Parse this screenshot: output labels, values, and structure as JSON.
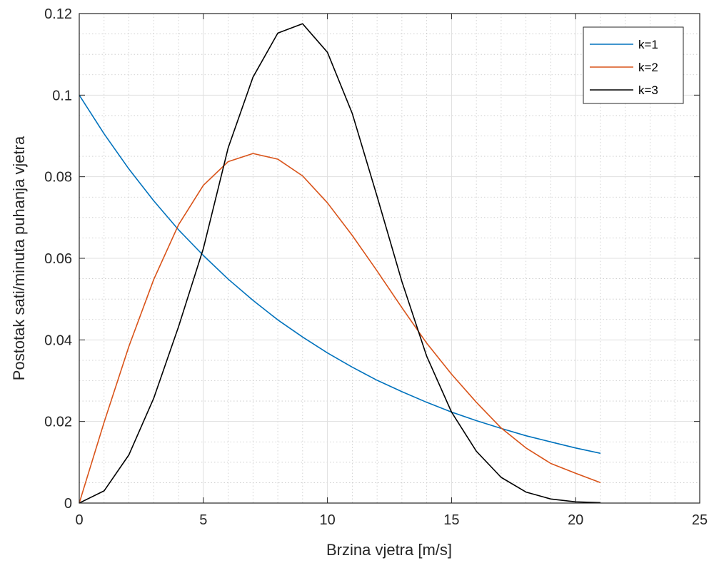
{
  "chart_data": {
    "type": "line",
    "title": "",
    "xlabel": "Brzina vjetra [m/s]",
    "ylabel": "Postotak sati/minuta puhanja vjetra",
    "xlim": [
      0,
      25
    ],
    "ylim": [
      0,
      0.12
    ],
    "xticks": [
      0,
      5,
      10,
      15,
      20,
      25
    ],
    "yticks": [
      0,
      0.02,
      0.04,
      0.06,
      0.08,
      0.1,
      0.12
    ],
    "xtick_labels": [
      "0",
      "5",
      "10",
      "15",
      "20",
      "25"
    ],
    "ytick_labels": [
      "0",
      "0.02",
      "0.04",
      "0.06",
      "0.08",
      "0.1",
      "0.12"
    ],
    "grid": "major-and-minor",
    "legend_position": "top-right",
    "x": [
      0,
      1,
      2,
      3,
      4,
      5,
      6,
      7,
      8,
      9,
      10,
      11,
      12,
      13,
      14,
      15,
      16,
      17,
      18,
      19,
      20,
      21
    ],
    "series": [
      {
        "name": "k=1",
        "color": "#0072BD",
        "values": [
          0.1,
          0.0905,
          0.0819,
          0.0741,
          0.067,
          0.0607,
          0.0549,
          0.0497,
          0.0449,
          0.0407,
          0.0368,
          0.0333,
          0.0301,
          0.0273,
          0.0247,
          0.0223,
          0.0202,
          0.0183,
          0.0165,
          0.015,
          0.0135,
          0.0122
        ]
      },
      {
        "name": "k=2",
        "color": "#D95319",
        "values": [
          0,
          0.0198,
          0.0384,
          0.0548,
          0.0682,
          0.0779,
          0.0837,
          0.0857,
          0.0843,
          0.0802,
          0.0736,
          0.0656,
          0.0569,
          0.0479,
          0.0392,
          0.0316,
          0.0247,
          0.0184,
          0.0135,
          0.0097,
          0.0073,
          0.005
        ]
      },
      {
        "name": "k=3",
        "color": "#000000",
        "values": [
          0,
          0.003,
          0.0118,
          0.0257,
          0.0432,
          0.0624,
          0.0871,
          0.1044,
          0.1152,
          0.1175,
          0.1105,
          0.0955,
          0.0752,
          0.0543,
          0.036,
          0.0223,
          0.0127,
          0.0063,
          0.0027,
          0.001,
          0.0003,
          0.0001
        ]
      }
    ]
  },
  "colors": {
    "axis": "#262626",
    "grid_major": "#dfdfdf",
    "grid_minor": "#c8c8c8",
    "plot_background": "#ffffff"
  }
}
